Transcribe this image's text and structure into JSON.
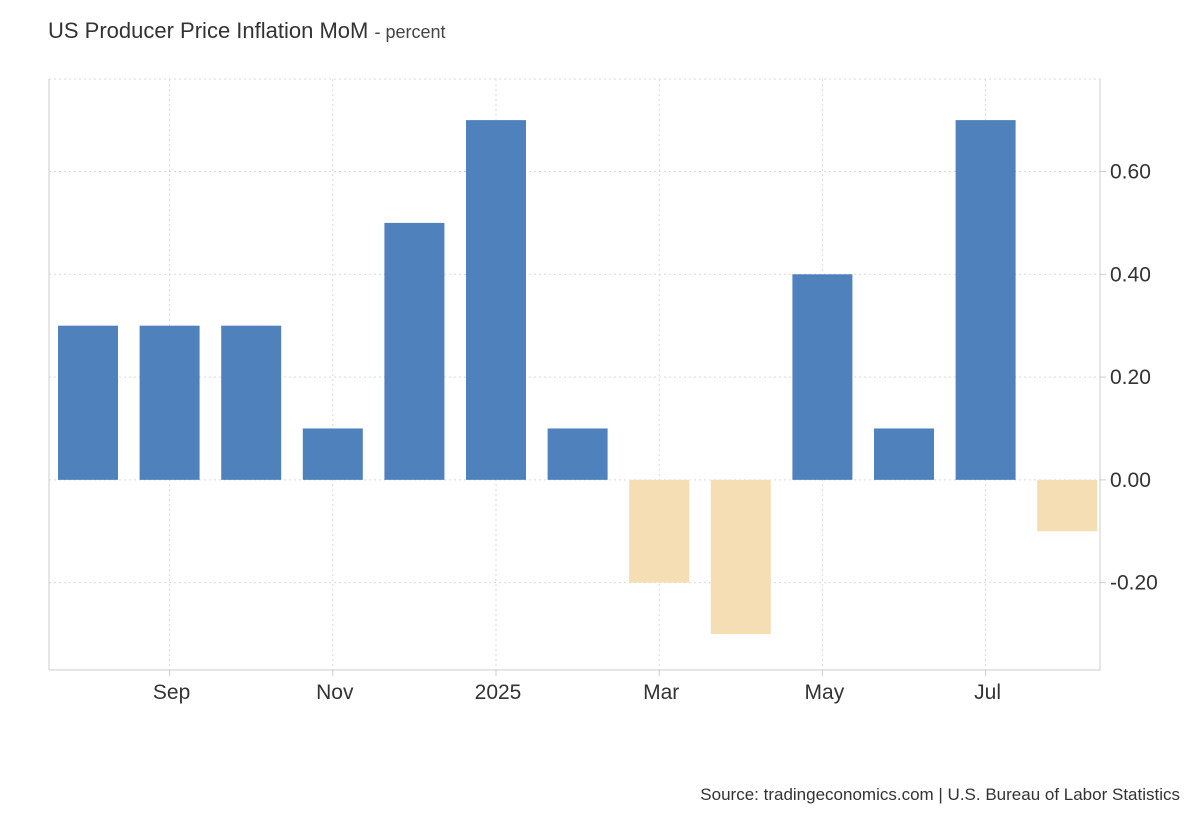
{
  "title": "US Producer Price Inflation MoM",
  "subtitle": "- percent",
  "source": "Source: tradingeconomics.com | U.S. Bureau of Labor Statistics",
  "colors": {
    "positive": "#4f81bd",
    "negative": "#f5deb3",
    "grid": "#d9d9d9",
    "axis": "#cccccc"
  },
  "chart_data": {
    "type": "bar",
    "categories": [
      "2024-08",
      "2024-09",
      "2024-10",
      "2024-11",
      "2024-12",
      "2025-01",
      "2025-02",
      "2025-03",
      "2025-04",
      "2025-05",
      "2025-06",
      "2025-07",
      "2025-08"
    ],
    "values": [
      0.3,
      0.3,
      0.3,
      0.1,
      0.5,
      0.7,
      0.1,
      -0.2,
      -0.3,
      0.4,
      0.1,
      0.7,
      -0.1
    ],
    "xlabel": "",
    "ylabel": "",
    "ylim": [
      -0.37,
      0.78
    ],
    "yticks": [
      0.6,
      0.4,
      0.2,
      0.0,
      -0.2
    ],
    "ytick_labels": [
      "0.60",
      "0.40",
      "0.20",
      "0.00",
      "-0.20"
    ],
    "xtick_labels": [
      {
        "category": "2024-09",
        "label": "Sep"
      },
      {
        "category": "2024-11",
        "label": "Nov"
      },
      {
        "category": "2025-01",
        "label": "2025"
      },
      {
        "category": "2025-03",
        "label": "Mar"
      },
      {
        "category": "2025-05",
        "label": "May"
      },
      {
        "category": "2025-07",
        "label": "Jul"
      }
    ],
    "grid": true,
    "yaxis_position": "right",
    "legend": "none"
  }
}
